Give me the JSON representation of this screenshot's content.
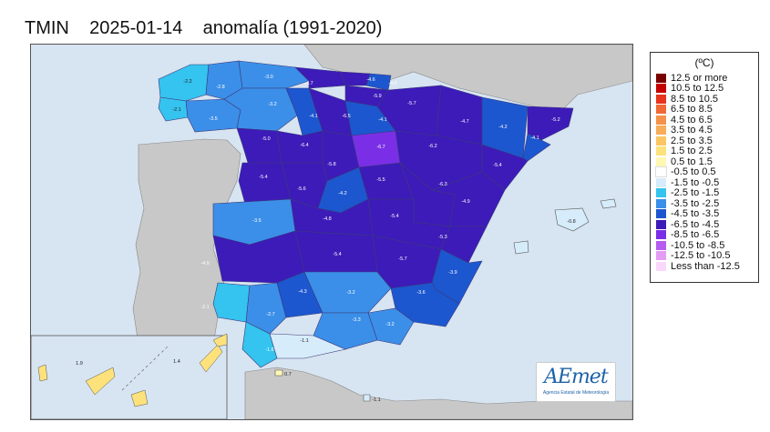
{
  "title": {
    "variable": "TMIN",
    "date": "2025-01-14",
    "description": "anomalía (1991-2020)"
  },
  "legend": {
    "unit": "(ºC)",
    "items": [
      {
        "label": "12.5 or more",
        "color": "#7a0000"
      },
      {
        "label": "10.5 to 12.5",
        "color": "#c40000"
      },
      {
        "label": "8.5 to 10.5",
        "color": "#e8341c"
      },
      {
        "label": "6.5 to 8.5",
        "color": "#f06a35"
      },
      {
        "label": "4.5 to 6.5",
        "color": "#f5924a"
      },
      {
        "label": "3.5 to 4.5",
        "color": "#f8ad58"
      },
      {
        "label": "2.5 to 3.5",
        "color": "#fbc663"
      },
      {
        "label": "1.5 to 2.5",
        "color": "#fde27b"
      },
      {
        "label": "0.5 to 1.5",
        "color": "#fff7b3"
      },
      {
        "label": "-0.5 to 0.5",
        "color": "#ffffff"
      },
      {
        "label": "-1.5 to -0.5",
        "color": "#d7ecfa"
      },
      {
        "label": "-2.5 to -1.5",
        "color": "#35c3ef"
      },
      {
        "label": "-3.5 to -2.5",
        "color": "#3b8fe8"
      },
      {
        "label": "-4.5 to -3.5",
        "color": "#1c57d0"
      },
      {
        "label": "-6.5 to -4.5",
        "color": "#3d1bb8"
      },
      {
        "label": "-8.5 to -6.5",
        "color": "#7a2fe6"
      },
      {
        "label": "-10.5 to -8.5",
        "color": "#b75cf0"
      },
      {
        "label": "-12.5 to -10.5",
        "color": "#e59cf5"
      },
      {
        "label": "Less than -12.5",
        "color": "#f9d8fc"
      }
    ]
  },
  "regions": [
    {
      "name": "galicia-west",
      "value": "-2.2"
    },
    {
      "name": "galicia-coast",
      "value": "-2.1"
    },
    {
      "name": "lugo",
      "value": "-2.8"
    },
    {
      "name": "asturias",
      "value": "-3.0"
    },
    {
      "name": "leon",
      "value": "-3.2"
    },
    {
      "name": "ourense",
      "value": "-3.5"
    },
    {
      "name": "cantabria",
      "value": "-4.7"
    },
    {
      "name": "bizkaia",
      "value": "-4.6"
    },
    {
      "name": "gipuzkoa",
      "value": "-4.0"
    },
    {
      "name": "araba",
      "value": "-5.9"
    },
    {
      "name": "burgos",
      "value": "-4.1"
    },
    {
      "name": "palencia",
      "value": "-6.5"
    },
    {
      "name": "larioja",
      "value": "-4.1"
    },
    {
      "name": "navarra",
      "value": "-5.7"
    },
    {
      "name": "huesca",
      "value": "-4.7"
    },
    {
      "name": "lleida",
      "value": "-4.2"
    },
    {
      "name": "girona",
      "value": "-5.2"
    },
    {
      "name": "barcelona",
      "value": "-4.1"
    },
    {
      "name": "zamora",
      "value": "-5.0"
    },
    {
      "name": "valladolid",
      "value": "-6.4"
    },
    {
      "name": "soria",
      "value": "-6.7"
    },
    {
      "name": "zaragoza",
      "value": "-6.2"
    },
    {
      "name": "tarragona",
      "value": "-5.4"
    },
    {
      "name": "salamanca",
      "value": "-5.4"
    },
    {
      "name": "segovia",
      "value": "-5.8"
    },
    {
      "name": "avila",
      "value": "-5.6"
    },
    {
      "name": "madrid",
      "value": "-4.2"
    },
    {
      "name": "guadalajara",
      "value": "-5.5"
    },
    {
      "name": "teruel",
      "value": "-6.3"
    },
    {
      "name": "castellon",
      "value": "-4.9"
    },
    {
      "name": "caceres",
      "value": "-3.5"
    },
    {
      "name": "toledo",
      "value": "-4.8"
    },
    {
      "name": "cuenca",
      "value": "-5.4"
    },
    {
      "name": "valencia",
      "value": "-5.3"
    },
    {
      "name": "badajoz",
      "value": "-4.9"
    },
    {
      "name": "ciudadreal",
      "value": "-5.4"
    },
    {
      "name": "albacete",
      "value": "-5.7"
    },
    {
      "name": "alicante",
      "value": "-3.9"
    },
    {
      "name": "huelva",
      "value": "-2.1"
    },
    {
      "name": "sevilla",
      "value": "-2.7"
    },
    {
      "name": "cordoba",
      "value": "-4.3"
    },
    {
      "name": "jaen",
      "value": "-3.2"
    },
    {
      "name": "murcia",
      "value": "-3.6"
    },
    {
      "name": "granada",
      "value": "-3.3"
    },
    {
      "name": "almeria",
      "value": "-3.2"
    },
    {
      "name": "cadiz",
      "value": "-1.6"
    },
    {
      "name": "malaga",
      "value": "-1.1"
    },
    {
      "name": "baleares",
      "value": "-0.8"
    },
    {
      "name": "ceuta",
      "value": "0.7"
    },
    {
      "name": "melilla",
      "value": "-1.1"
    },
    {
      "name": "canarias-west",
      "value": "1.9"
    },
    {
      "name": "canarias-east",
      "value": "1.4"
    }
  ],
  "logo": {
    "name": "AEmet",
    "subtitle": "Agencia Estatal de Meteorología"
  }
}
